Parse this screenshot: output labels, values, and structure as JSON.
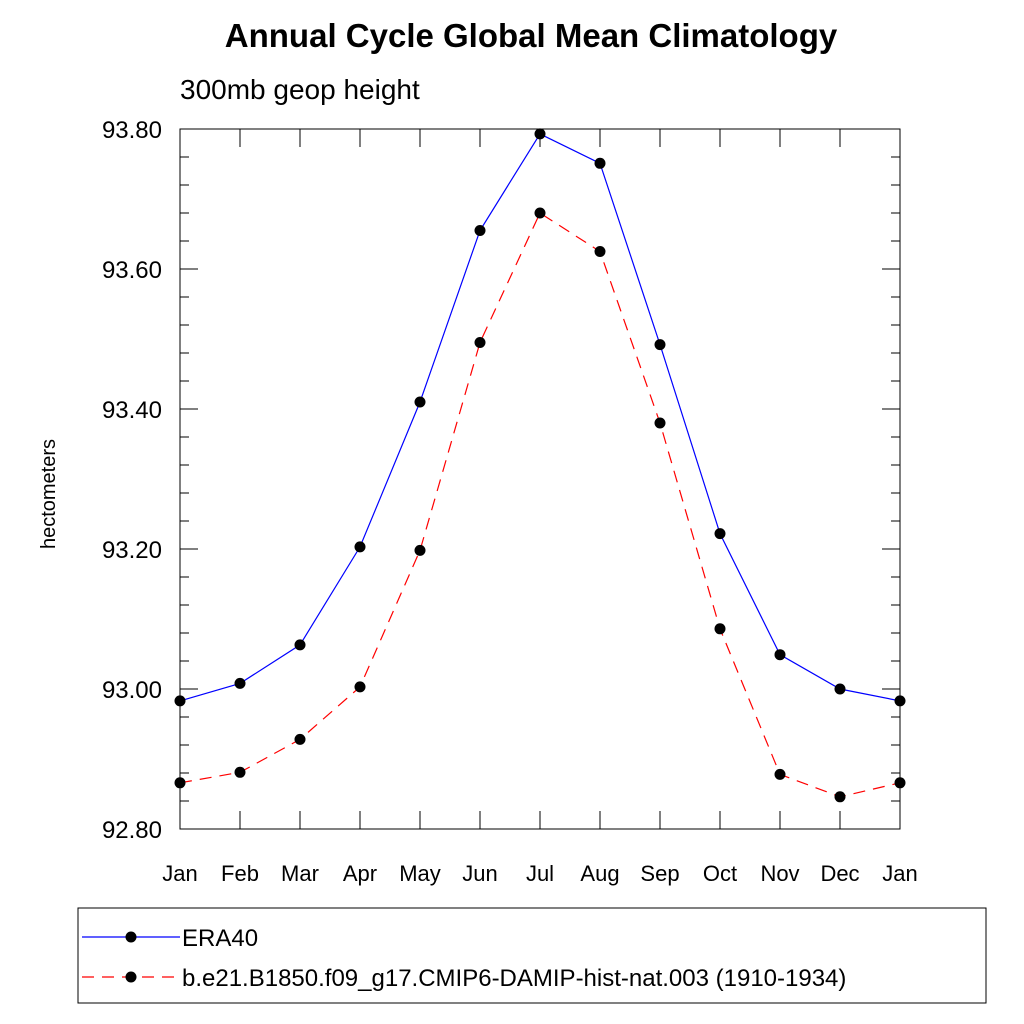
{
  "chart_data": {
    "type": "line",
    "title": "Annual Cycle Global Mean Climatology",
    "subtitle": "300mb geop height",
    "xlabel": "",
    "ylabel": "hectometers",
    "categories": [
      "Jan",
      "Feb",
      "Mar",
      "Apr",
      "May",
      "Jun",
      "Jul",
      "Aug",
      "Sep",
      "Oct",
      "Nov",
      "Dec",
      "Jan"
    ],
    "ylim": [
      92.8,
      93.8
    ],
    "yticks": [
      92.8,
      93.0,
      93.2,
      93.4,
      93.6,
      93.8
    ],
    "ytick_labels": [
      "92.80",
      "93.00",
      "93.20",
      "93.40",
      "93.60",
      "93.80"
    ],
    "grid": false,
    "legend_placement": "bottom",
    "series": [
      {
        "name": "ERA40",
        "color": "#0000ff",
        "line_style": "solid",
        "marker": "filled-circle",
        "values": [
          92.983,
          93.008,
          93.063,
          93.203,
          93.41,
          93.655,
          93.793,
          93.751,
          93.492,
          93.222,
          93.049,
          93.0,
          92.983
        ]
      },
      {
        "name": "b.e21.B1850.f09_g17.CMIP6-DAMIP-hist-nat.003 (1910-1934)",
        "color": "#ff0000",
        "line_style": "dashed",
        "marker": "filled-circle",
        "values": [
          92.866,
          92.881,
          92.928,
          93.003,
          93.198,
          93.495,
          93.68,
          93.625,
          93.38,
          93.086,
          92.878,
          92.846,
          92.866
        ]
      }
    ]
  }
}
